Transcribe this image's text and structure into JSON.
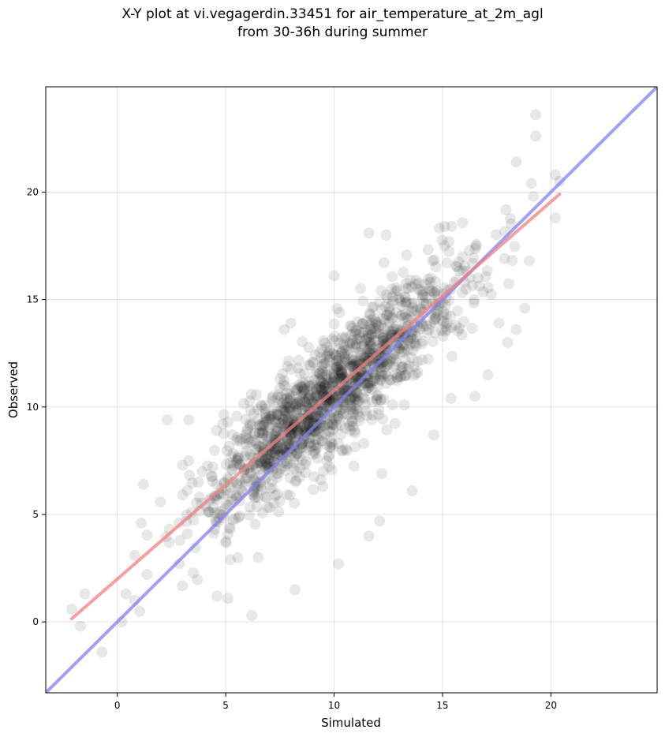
{
  "chart_data": {
    "type": "scatter",
    "title_lines": [
      "X-Y plot at vi.vegagerdin.33451 for air_temperature_at_2m_agl",
      "from 30-36h during summer"
    ],
    "xlabel": "Simulated",
    "ylabel": "Observed",
    "xlim": [
      -3.3,
      24.9
    ],
    "ylim": [
      -3.3,
      24.9
    ],
    "xticks": [
      0,
      5,
      10,
      15,
      20
    ],
    "yticks": [
      0,
      5,
      10,
      15,
      20
    ],
    "grid": true,
    "point_color": "#000000",
    "point_alpha": 0.09,
    "fit_line": {
      "x": [
        -2.1,
        20.4
      ],
      "y": [
        0.15,
        19.9
      ],
      "color": "#f08080"
    },
    "identity_line": {
      "x": [
        -3.3,
        24.9
      ],
      "y": [
        -3.3,
        24.9
      ],
      "color": "#8080f0"
    },
    "outlier_points": [
      [
        -2.1,
        0.6
      ],
      [
        -1.7,
        -0.2
      ],
      [
        -1.5,
        1.3
      ],
      [
        -0.7,
        -1.4
      ],
      [
        0.2,
        0.0
      ],
      [
        0.4,
        1.3
      ],
      [
        0.8,
        1.0
      ],
      [
        0.8,
        3.1
      ],
      [
        1.1,
        4.6
      ],
      [
        1.2,
        6.4
      ],
      [
        2.3,
        9.4
      ],
      [
        3.3,
        9.4
      ],
      [
        4.6,
        1.2
      ],
      [
        5.1,
        1.1
      ],
      [
        6.2,
        0.3
      ],
      [
        6.5,
        3.0
      ],
      [
        10.2,
        2.7
      ],
      [
        8.2,
        1.5
      ],
      [
        11.6,
        4.0
      ],
      [
        12.1,
        4.7
      ],
      [
        13.6,
        6.1
      ],
      [
        12.2,
        6.9
      ],
      [
        14.6,
        8.7
      ],
      [
        15.4,
        10.4
      ],
      [
        16.5,
        10.5
      ],
      [
        17.1,
        11.5
      ],
      [
        17.6,
        13.9
      ],
      [
        18.0,
        13.0
      ],
      [
        18.4,
        13.6
      ],
      [
        18.8,
        14.6
      ],
      [
        19.0,
        16.8
      ],
      [
        19.2,
        19.8
      ],
      [
        19.1,
        20.4
      ],
      [
        19.3,
        22.6
      ],
      [
        19.3,
        23.6
      ],
      [
        18.4,
        21.4
      ],
      [
        20.2,
        20.8
      ],
      [
        20.2,
        18.8
      ],
      [
        20.4,
        20.5
      ],
      [
        12.4,
        18.0
      ],
      [
        11.6,
        18.1
      ],
      [
        15.1,
        18.4
      ],
      [
        10.0,
        16.1
      ],
      [
        7.7,
        13.6
      ],
      [
        8.0,
        13.9
      ],
      [
        5.1,
        9.3
      ],
      [
        3.3,
        7.5
      ],
      [
        4.5,
        4.3
      ]
    ],
    "cloud": {
      "x_center": 9.8,
      "x_sd": 3.1,
      "slope": 0.87,
      "intercept": 1.95,
      "residual_sd": 1.35,
      "n": 1450,
      "x_range": [
        1.0,
        18.5
      ]
    }
  }
}
